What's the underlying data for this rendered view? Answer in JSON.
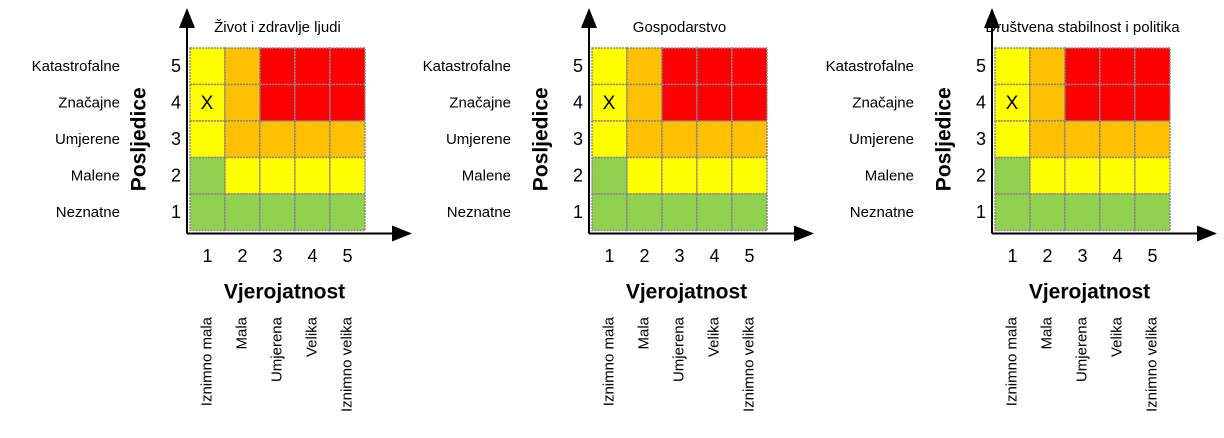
{
  "panels": [
    {
      "title": "Život i zdravlje ljudi"
    },
    {
      "title": "Gospodarstvo"
    },
    {
      "title": "Društvena stabilnost i politika"
    }
  ],
  "consequence_labels": [
    "Katastrofalne",
    "Značajne",
    "Umjerene",
    "Malene",
    "Neznatne"
  ],
  "y_numbers": [
    "5",
    "4",
    "3",
    "2",
    "1"
  ],
  "x_numbers": [
    "1",
    "2",
    "3",
    "4",
    "5"
  ],
  "y_axis_label": "Posljedice",
  "x_axis_label": "Vjerojatnost",
  "probability_labels": [
    "Iznimno mala",
    "Mala",
    "Umjerena",
    "Velika",
    "Iznimno velika"
  ],
  "cells": [
    [
      "#ffff00",
      "#ffc000",
      "#ff0000",
      "#ff0000",
      "#ff0000"
    ],
    [
      "#ffff00",
      "#ffc000",
      "#ff0000",
      "#ff0000",
      "#ff0000"
    ],
    [
      "#ffff00",
      "#ffc000",
      "#ffc000",
      "#ffc000",
      "#ffc000"
    ],
    [
      "#92d050",
      "#ffff00",
      "#ffff00",
      "#ffff00",
      "#ffff00"
    ],
    [
      "#92d050",
      "#92d050",
      "#92d050",
      "#92d050",
      "#92d050"
    ]
  ],
  "marker": {
    "text": "X",
    "row": 1,
    "col": 0
  }
}
